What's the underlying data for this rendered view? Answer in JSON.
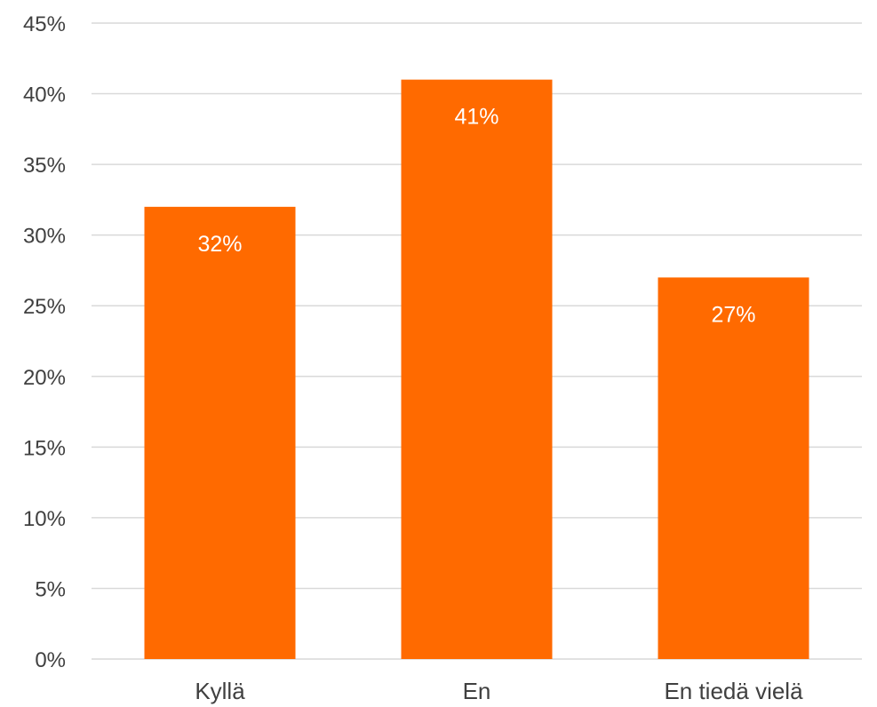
{
  "chart_data": {
    "type": "bar",
    "categories": [
      "Kyllä",
      "En",
      "En tiedä vielä"
    ],
    "values": [
      32,
      41,
      27
    ],
    "data_labels": [
      "32%",
      "41%",
      "27%"
    ],
    "ylim": [
      0,
      45
    ],
    "yticks": [
      0,
      5,
      10,
      15,
      20,
      25,
      30,
      35,
      40,
      45
    ],
    "ytick_labels": [
      "0%",
      "5%",
      "10%",
      "15%",
      "20%",
      "25%",
      "30%",
      "35%",
      "40%",
      "45%"
    ],
    "grid": true,
    "legend": "none",
    "title": "",
    "xlabel": "",
    "ylabel": "",
    "colors": {
      "bar": "#ff6a00",
      "grid": "#d9d9d9",
      "tick_text": "#404040",
      "data_label_text": "#ffffff"
    }
  }
}
